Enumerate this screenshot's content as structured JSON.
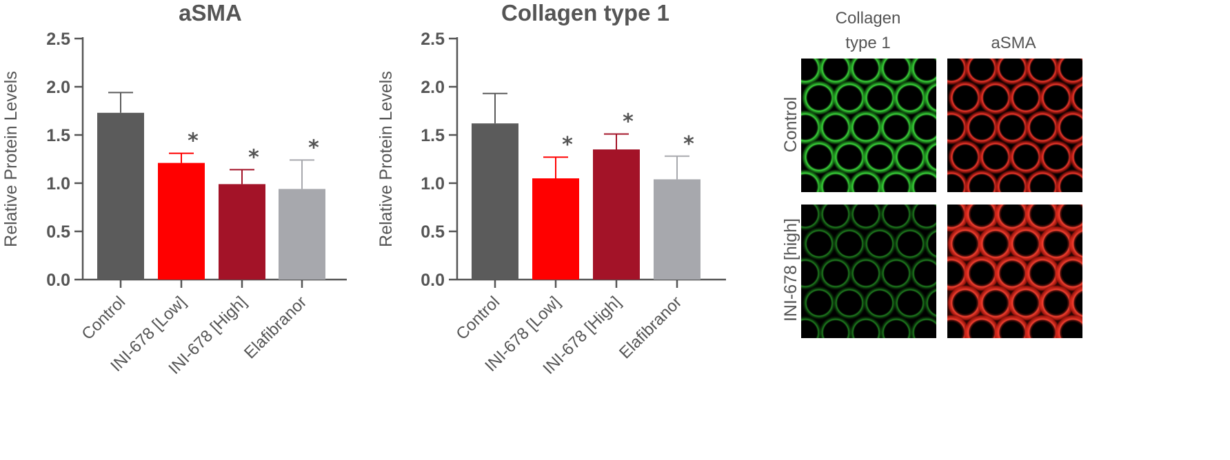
{
  "chart_data": [
    {
      "type": "bar",
      "title": "aSMA",
      "ylabel": "Relative Protein Levels",
      "ylim": [
        0,
        2.5
      ],
      "yticks": [
        "0.0",
        "0.5",
        "1.0",
        "1.5",
        "2.0",
        "2.5"
      ],
      "grid": false,
      "categories": [
        "Control",
        "INI-678 [Low]",
        "INI-678 [High]",
        "Elafibranor"
      ],
      "values": [
        1.73,
        1.21,
        0.99,
        0.94
      ],
      "errors": [
        0.21,
        0.1,
        0.15,
        0.3
      ],
      "colors": [
        "#5b5b5b",
        "#ff0000",
        "#a31328",
        "#a7a8ad"
      ],
      "significance": [
        "",
        "*",
        "*",
        "*"
      ]
    },
    {
      "type": "bar",
      "title": "Collagen type 1",
      "ylabel": "Relative Protein Levels",
      "ylim": [
        0,
        2.5
      ],
      "yticks": [
        "0.0",
        "0.5",
        "1.0",
        "1.5",
        "2.0",
        "2.5"
      ],
      "grid": false,
      "categories": [
        "Control",
        "INI-678 [Low]",
        "INI-678 [High]",
        "Elafibranor"
      ],
      "values": [
        1.62,
        1.05,
        1.35,
        1.04
      ],
      "errors": [
        0.31,
        0.22,
        0.16,
        0.24
      ],
      "colors": [
        "#5b5b5b",
        "#ff0000",
        "#a31328",
        "#a7a8ad"
      ],
      "significance": [
        "",
        "*",
        "*",
        "*"
      ]
    }
  ],
  "micrographs": {
    "columns": [
      "Collagen",
      "type 1",
      "aSMA"
    ],
    "rows": [
      "Control",
      "INI-678 [high]"
    ],
    "channel_colors": {
      "collagen": "#2bd92b",
      "asma": "#e8261c"
    }
  }
}
